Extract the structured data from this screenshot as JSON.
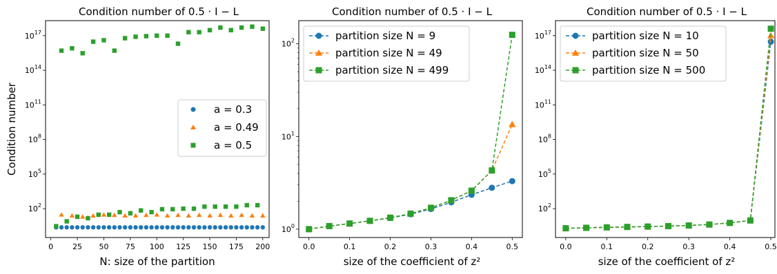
{
  "chart_data": [
    {
      "type": "scatter",
      "title": "Condition number of 0.5 · I − L",
      "xlabel": "N: size of the partition",
      "ylabel": "Condition number",
      "yscale": "log",
      "xlim": [
        -5,
        206
      ],
      "ylim_log10": [
        -0.5,
        18.3
      ],
      "xticks": [
        0,
        25,
        50,
        75,
        100,
        125,
        150,
        175,
        200
      ],
      "yticks_exp": [
        2,
        5,
        8,
        11,
        14,
        17
      ],
      "legend": "center-right",
      "series": [
        {
          "name": "a = 0.3",
          "color": "#1f77b4",
          "marker": "circle",
          "x": [
            5,
            10,
            15,
            20,
            25,
            30,
            35,
            40,
            45,
            50,
            55,
            60,
            65,
            70,
            75,
            80,
            85,
            90,
            95,
            100,
            105,
            110,
            115,
            120,
            125,
            130,
            135,
            140,
            145,
            150,
            155,
            160,
            165,
            170,
            175,
            180,
            185,
            190,
            195,
            200
          ],
          "y": [
            2.4,
            2.4,
            2.4,
            2.4,
            2.4,
            2.4,
            2.4,
            2.4,
            2.4,
            2.4,
            2.4,
            2.4,
            2.4,
            2.4,
            2.4,
            2.4,
            2.4,
            2.4,
            2.4,
            2.4,
            2.4,
            2.4,
            2.4,
            2.4,
            2.4,
            2.4,
            2.4,
            2.4,
            2.4,
            2.4,
            2.4,
            2.4,
            2.4,
            2.4,
            2.4,
            2.4,
            2.4,
            2.4,
            2.4,
            2.4
          ]
        },
        {
          "name": "a = 0.49",
          "color": "#ff7f0e",
          "marker": "triangle",
          "x": [
            10,
            20,
            30,
            40,
            50,
            60,
            70,
            80,
            90,
            100,
            110,
            120,
            130,
            140,
            150,
            160,
            170,
            180,
            190,
            200
          ],
          "y": [
            30,
            25,
            20,
            25,
            30,
            28,
            25,
            25,
            28,
            30,
            25,
            28,
            25,
            28,
            25,
            28,
            25,
            28,
            25,
            25
          ]
        },
        {
          "name": "a = 0.5",
          "color": "#2ca02c",
          "marker": "square",
          "x": [
            5,
            10,
            15,
            20,
            25,
            30,
            35,
            40,
            45,
            50,
            55,
            60,
            65,
            70,
            75,
            80,
            85,
            90,
            95,
            100,
            105,
            110,
            115,
            120,
            125,
            130,
            135,
            140,
            145,
            150,
            155,
            160,
            165,
            170,
            175,
            180,
            185,
            190,
            195,
            200
          ],
          "y": [
            3,
            5000000000000000.0,
            8,
            8000000000000000.0,
            20,
            3000000000000000.0,
            15,
            3e+16,
            30,
            4e+16,
            30,
            5000000000000000.0,
            50,
            6e+16,
            40,
            8e+16,
            70,
            9e+16,
            50,
            1e+17,
            90,
            1e+17,
            90,
            2e+16,
            100,
            2e+17,
            100,
            2e+17,
            150,
            3e+17,
            150,
            5e+17,
            150,
            3e+17,
            150,
            5e+17,
            200,
            6e+17,
            200,
            4e+17
          ]
        }
      ]
    },
    {
      "type": "line",
      "title": "Condition number of 0.5 · I − L",
      "xlabel": "size of the coefficient of z²",
      "ylabel": "",
      "yscale": "log",
      "xlim": [
        -0.025,
        0.525
      ],
      "ylim_log10": [
        -0.09,
        2.25
      ],
      "xticks": [
        0.0,
        0.1,
        0.2,
        0.3,
        0.4,
        0.5
      ],
      "yticks_exp": [
        0,
        1,
        2
      ],
      "legend": "top-left",
      "x": [
        0,
        0.05,
        0.1,
        0.15,
        0.2,
        0.25,
        0.3,
        0.35,
        0.4,
        0.45,
        0.5
      ],
      "series": [
        {
          "name": "partition size N = 9",
          "color": "#1f77b4",
          "marker": "circle",
          "values": [
            1.0,
            1.08,
            1.15,
            1.23,
            1.32,
            1.45,
            1.65,
            1.95,
            2.35,
            2.8,
            3.3
          ]
        },
        {
          "name": "partition size N = 49",
          "color": "#ff7f0e",
          "marker": "triangle",
          "values": [
            1.0,
            1.08,
            1.15,
            1.23,
            1.33,
            1.47,
            1.7,
            2.05,
            2.6,
            4.3,
            13.5
          ]
        },
        {
          "name": "partition size N = 499",
          "color": "#2ca02c",
          "marker": "square",
          "values": [
            1.0,
            1.08,
            1.15,
            1.23,
            1.33,
            1.47,
            1.7,
            2.05,
            2.6,
            4.3,
            125
          ]
        }
      ]
    },
    {
      "type": "line",
      "title": "Condition number of 0.5 · I − L",
      "xlabel": "size of the coefficient of z²",
      "ylabel": "",
      "yscale": "log",
      "xlim": [
        -0.025,
        0.51
      ],
      "ylim_log10": [
        -0.5,
        18.3
      ],
      "xticks": [
        0.0,
        0.1,
        0.2,
        0.3,
        0.4,
        0.5
      ],
      "yticks_exp": [
        2,
        5,
        8,
        11,
        14,
        17
      ],
      "legend": "top-left",
      "x": [
        0,
        0.05,
        0.1,
        0.15,
        0.2,
        0.25,
        0.3,
        0.35,
        0.4,
        0.45,
        0.5
      ],
      "series": [
        {
          "name": "partition size N = 10",
          "color": "#1f77b4",
          "marker": "circle",
          "values": [
            2.0,
            2.2,
            2.4,
            2.6,
            2.8,
            3.1,
            3.5,
            4.2,
            5.8,
            9.5,
            3e+16
          ]
        },
        {
          "name": "partition size N = 50",
          "color": "#ff7f0e",
          "marker": "triangle",
          "values": [
            2.0,
            2.2,
            2.4,
            2.6,
            2.8,
            3.1,
            3.5,
            4.2,
            5.8,
            9.5,
            1e+17
          ]
        },
        {
          "name": "partition size N = 500",
          "color": "#2ca02c",
          "marker": "square",
          "values": [
            2.0,
            2.2,
            2.4,
            2.6,
            2.8,
            3.1,
            3.5,
            4.2,
            5.8,
            9.5,
            4e+17
          ]
        }
      ]
    }
  ]
}
